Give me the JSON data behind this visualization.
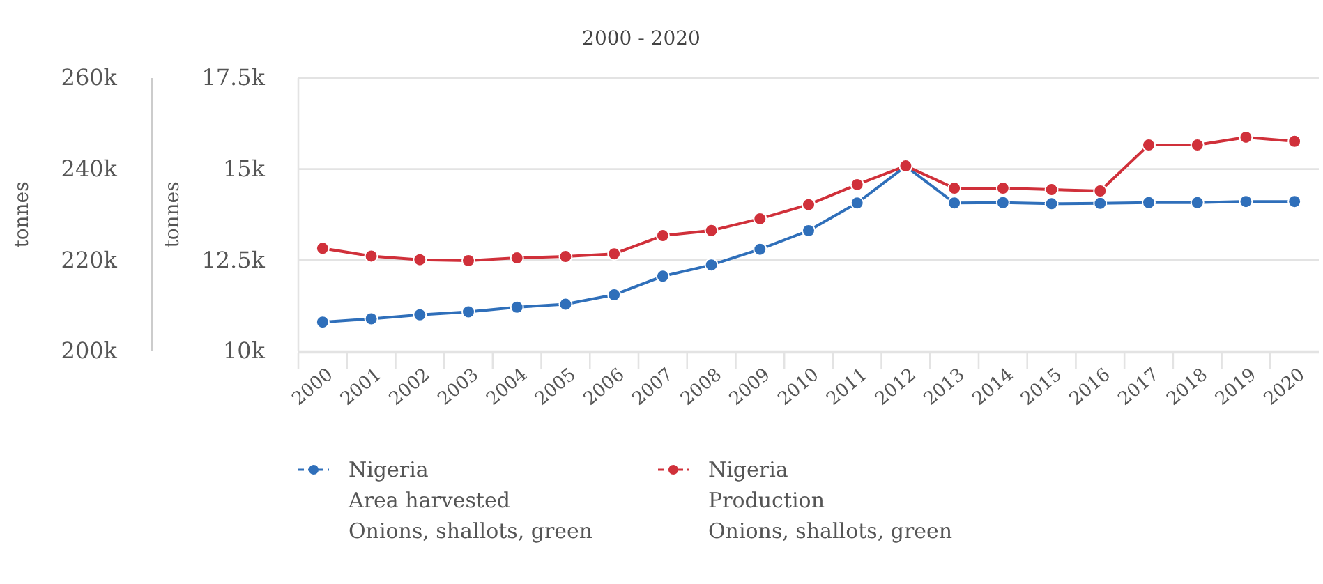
{
  "chart_data": {
    "type": "line",
    "title": "2000 - 2020",
    "ylabel": "tonnes",
    "y3label": "tonnes",
    "categories": [
      "2000",
      "2001",
      "2002",
      "2003",
      "2004",
      "2005",
      "2006",
      "2007",
      "2008",
      "2009",
      "2010",
      "2011",
      "2012",
      "2013",
      "2014",
      "2015",
      "2016",
      "2017",
      "2018",
      "2019",
      "2020"
    ],
    "series": [
      {
        "name": "Nigeria\nArea harvested\nOnions, shallots, green",
        "color": "#2f6fba",
        "values": [
          10800,
          10890,
          11000,
          11080,
          11210,
          11290,
          11550,
          12060,
          12370,
          12800,
          13310,
          14070,
          15080,
          14070,
          14080,
          14050,
          14060,
          14080,
          14080,
          14110,
          14110
        ]
      },
      {
        "name": "Nigeria\nProduction\nOnions, shallots, green",
        "color": "#d0303a",
        "axis": "y3",
        "values": [
          222600,
          220900,
          220100,
          219900,
          220500,
          220800,
          221400,
          225400,
          226500,
          229100,
          232200,
          236600,
          240700,
          235800,
          235800,
          235500,
          235200,
          245300,
          245300,
          247000,
          246100
        ]
      }
    ],
    "ylim": [
      10000,
      17500
    ],
    "yticks": [
      {
        "value": 10000,
        "label": "10k"
      },
      {
        "value": 12500,
        "label": "12.5k"
      },
      {
        "value": 15000,
        "label": "15k"
      },
      {
        "value": 17500,
        "label": "17.5k"
      }
    ],
    "y3lim": [
      200000,
      260000
    ],
    "y3ticks": [
      {
        "value": 200000,
        "label": "200k"
      },
      {
        "value": 220000,
        "label": "220k"
      },
      {
        "value": 240000,
        "label": "240k"
      },
      {
        "value": 260000,
        "label": "260k"
      }
    ],
    "grid": "y",
    "legend": "bottom",
    "marker": "circle",
    "line_style": "solid"
  }
}
